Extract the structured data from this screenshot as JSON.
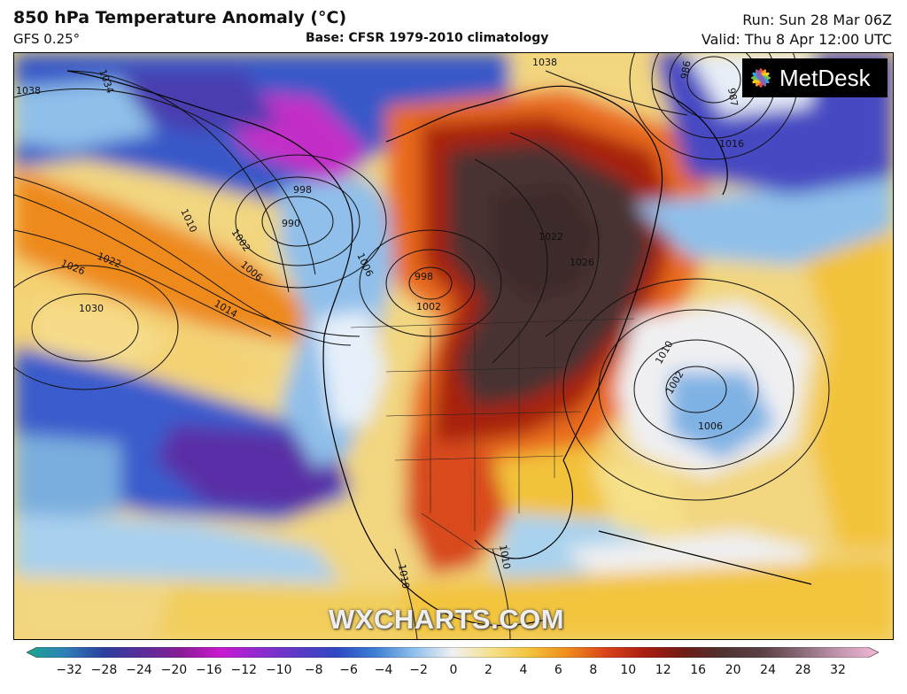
{
  "header": {
    "title": "850 hPa Temperature Anomaly (°C)",
    "model": "GFS 0.25°",
    "base": "Base: CFSR 1979-2010 climatology",
    "run": "Run: Sun 28 Mar 06Z",
    "valid": "Valid: Thu 8 Apr 12:00 UTC"
  },
  "logo": {
    "text": "MetDesk"
  },
  "watermark": {
    "text": "WXCHARTS.COM"
  },
  "isobar_labels": [
    "1038",
    "1034",
    "1038",
    "986",
    "987",
    "1016",
    "998",
    "990",
    "1010",
    "1002",
    "1006",
    "1022",
    "1026",
    "1014",
    "1030",
    "1006",
    "998",
    "1002",
    "1022",
    "1026",
    "1010",
    "1002",
    "1006",
    "1010",
    "1010"
  ],
  "colorbar": {
    "ticks": [
      "−32",
      "−28",
      "−24",
      "−20",
      "−16",
      "−12",
      "−10",
      "−8",
      "−6",
      "−4",
      "−2",
      "0",
      "2",
      "4",
      "6",
      "8",
      "10",
      "12",
      "16",
      "20",
      "24",
      "28",
      "32"
    ],
    "colors": [
      "#1aa88c",
      "#2f7fb8",
      "#2b3f9e",
      "#5a2c9a",
      "#8a1d96",
      "#c81ad0",
      "#8f2bd0",
      "#5a3ac6",
      "#2f48c4",
      "#3d7fd4",
      "#8fc0ec",
      "#f0f0f2",
      "#f6e08a",
      "#f3c23a",
      "#ef8a1c",
      "#d8401a",
      "#a81c12",
      "#6e1c16",
      "#4e3330",
      "#5a4145",
      "#8a6a78",
      "#c497b0",
      "#f2b8d4"
    ]
  }
}
